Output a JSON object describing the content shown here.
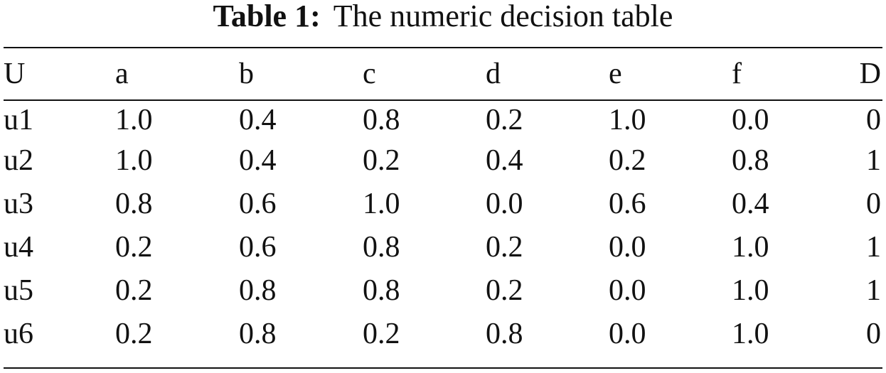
{
  "caption": {
    "label": "Table 1:",
    "text": "The numeric decision table"
  },
  "table": {
    "headers": [
      "U",
      "a",
      "b",
      "c",
      "d",
      "e",
      "f",
      "D"
    ],
    "rows": [
      [
        "u1",
        "1.0",
        "0.4",
        "0.8",
        "0.2",
        "1.0",
        "0.0",
        "0"
      ],
      [
        "u2",
        "1.0",
        "0.4",
        "0.2",
        "0.4",
        "0.2",
        "0.8",
        "1"
      ],
      [
        "u3",
        "0.8",
        "0.6",
        "1.0",
        "0.0",
        "0.6",
        "0.4",
        "0"
      ],
      [
        "u4",
        "0.2",
        "0.6",
        "0.8",
        "0.2",
        "0.0",
        "1.0",
        "1"
      ],
      [
        "u5",
        "0.2",
        "0.8",
        "0.8",
        "0.2",
        "0.0",
        "1.0",
        "1"
      ],
      [
        "u6",
        "0.2",
        "0.8",
        "0.2",
        "0.8",
        "0.0",
        "1.0",
        "0"
      ]
    ]
  }
}
